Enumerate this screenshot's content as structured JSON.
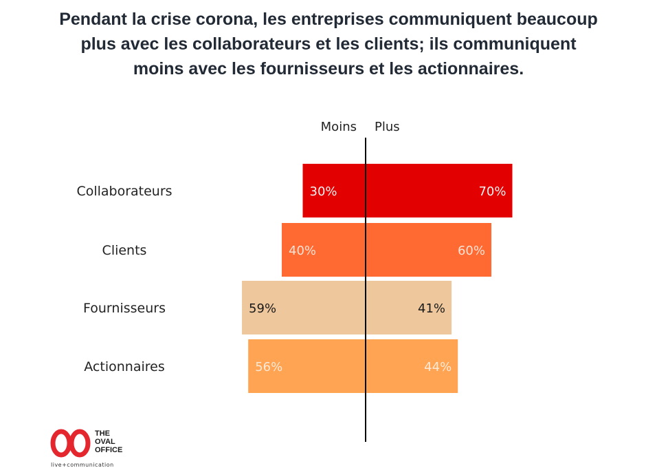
{
  "title_lines": [
    "Pendant la crise corona, les entreprises communiquent beaucoup",
    "plus avec les collaborateurs et les clients; ils communiquent",
    "moins avec les fournisseurs et les actionnaires."
  ],
  "chart_data": {
    "type": "bar",
    "orientation": "horizontal-diverging",
    "title": "Pendant la crise corona, les entreprises communiquent beaucoup plus avec les collaborateurs et les clients; ils communiquent moins avec les fournisseurs et les actionnaires.",
    "left_label": "Moins",
    "right_label": "Plus",
    "categories": [
      "Collaborateurs",
      "Clients",
      "Fournisseurs",
      "Actionnaires"
    ],
    "series": [
      {
        "name": "Moins",
        "values": [
          30,
          40,
          59,
          56
        ]
      },
      {
        "name": "Plus",
        "values": [
          70,
          60,
          41,
          44
        ]
      }
    ],
    "value_suffix": "%",
    "colors": [
      "#e30000",
      "#ff6a33",
      "#eec79c",
      "#ffa452"
    ],
    "label_colors": [
      "#f3f3f3",
      "#fbe3d6",
      "#1a1a1a",
      "#fde9d6"
    ]
  },
  "logo": {
    "name_lines": [
      "THE",
      "OVAL",
      "OFFICE"
    ],
    "tagline": "live+communication",
    "color": "#e4262e"
  }
}
